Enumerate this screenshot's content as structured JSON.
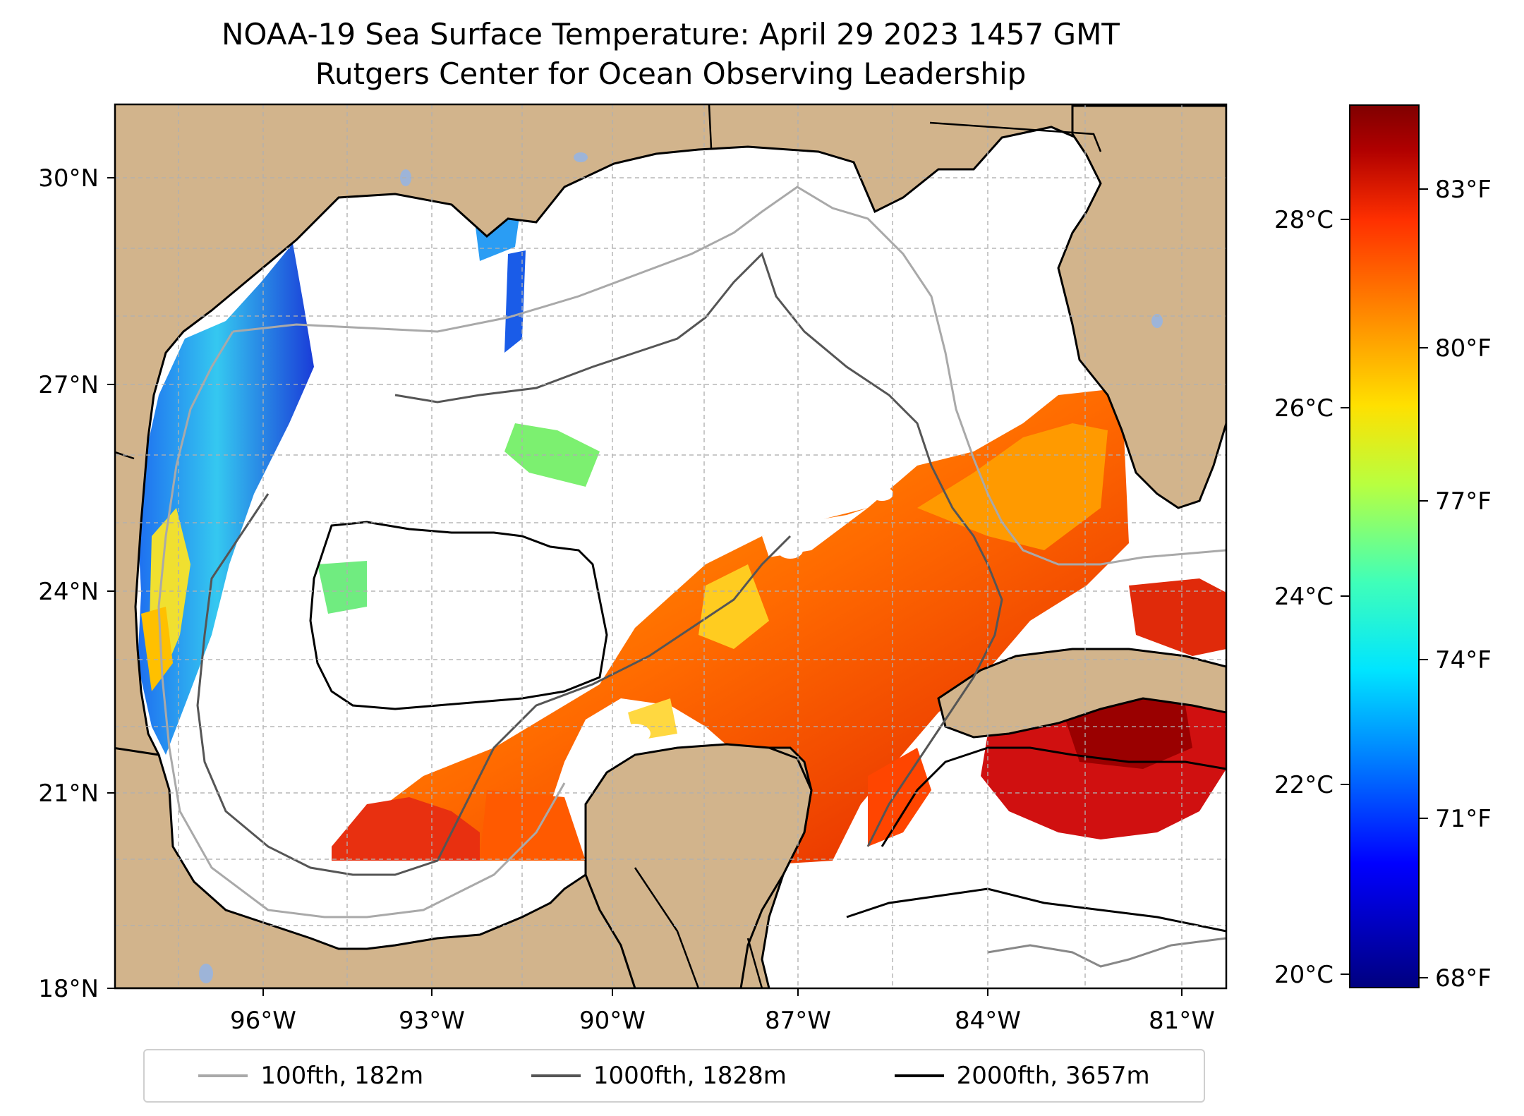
{
  "title": {
    "line1": "NOAA-19 Sea Surface Temperature: April 29 2023 1457 GMT",
    "line2": "Rutgers Center for Ocean Observing Leadership"
  },
  "map": {
    "region": "Gulf of Mexico",
    "lon_range": [
      -98.0,
      -80.0
    ],
    "lat_range": [
      18.0,
      31.0
    ],
    "lat_ticks": [
      {
        "value": 30,
        "label": "30°N"
      },
      {
        "value": 27,
        "label": "27°N"
      },
      {
        "value": 24,
        "label": "24°N"
      },
      {
        "value": 21,
        "label": "21°N"
      },
      {
        "value": 18,
        "label": "18°N"
      }
    ],
    "lon_ticks": [
      {
        "value": -96,
        "label": "96°W"
      },
      {
        "value": -93,
        "label": "93°W"
      },
      {
        "value": -90,
        "label": "90°W"
      },
      {
        "value": -87,
        "label": "87°W"
      },
      {
        "value": -84,
        "label": "84°W"
      },
      {
        "value": -81,
        "label": "81°W"
      }
    ],
    "colors": {
      "land": "#d2b48c",
      "no_data": "#ffffff",
      "gridline": "#b0b0b0",
      "lake": "#9db4d8"
    }
  },
  "legend": {
    "items": [
      {
        "label": "100fth, 182m",
        "color": "#a9a9a9"
      },
      {
        "label": "1000fth, 1828m",
        "color": "#555555"
      },
      {
        "label": "2000fth, 3657m",
        "color": "#000000"
      }
    ]
  },
  "colorbar": {
    "colormap": "jet",
    "celsius_ticks": [
      {
        "value": 28,
        "label": "28°C"
      },
      {
        "value": 26,
        "label": "26°C"
      },
      {
        "value": 24,
        "label": "24°C"
      },
      {
        "value": 22,
        "label": "22°C"
      },
      {
        "value": 20,
        "label": "20°C"
      }
    ],
    "fahrenheit_ticks": [
      {
        "value": 83,
        "label": "83°F"
      },
      {
        "value": 80,
        "label": "80°F"
      },
      {
        "value": 77,
        "label": "77°F"
      },
      {
        "value": 74,
        "label": "74°F"
      },
      {
        "value": 71,
        "label": "71°F"
      },
      {
        "value": 68,
        "label": "68°F"
      }
    ]
  }
}
